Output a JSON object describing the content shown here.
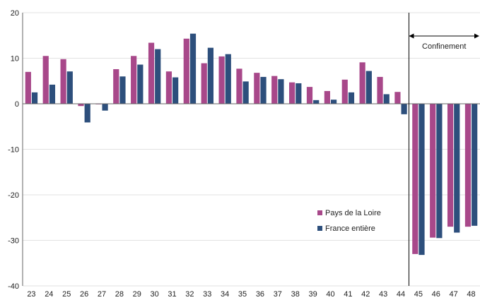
{
  "chart_data": {
    "type": "bar",
    "categories": [
      "23",
      "24",
      "25",
      "26",
      "27",
      "28",
      "29",
      "30",
      "31",
      "32",
      "33",
      "34",
      "35",
      "36",
      "37",
      "38",
      "39",
      "40",
      "41",
      "42",
      "43",
      "44",
      "45",
      "46",
      "47",
      "48"
    ],
    "series": [
      {
        "name": "Pays de la Loire",
        "color": "#a8488a",
        "values": [
          7.0,
          10.5,
          9.8,
          -0.5,
          -0.1,
          7.6,
          10.5,
          13.4,
          7.1,
          14.3,
          8.9,
          10.4,
          7.7,
          6.8,
          6.1,
          4.7,
          3.7,
          2.8,
          5.3,
          9.1,
          5.9,
          2.6,
          -33.0,
          -29.4,
          -27.0,
          -27.0
        ]
      },
      {
        "name": "France entière",
        "color": "#2d4f7c",
        "values": [
          2.5,
          4.2,
          7.1,
          -4.1,
          -1.5,
          6.0,
          8.6,
          12.0,
          5.8,
          15.4,
          12.3,
          10.9,
          4.9,
          5.9,
          5.4,
          4.5,
          0.8,
          0.9,
          2.5,
          7.2,
          2.1,
          -2.3,
          -33.2,
          -29.5,
          -28.3,
          -26.8
        ]
      }
    ],
    "ylim": [
      -40,
      20
    ],
    "yticks": [
      20,
      10,
      0,
      -10,
      -20,
      -30,
      -40
    ],
    "grid": true,
    "legend": "center-right",
    "annotation": {
      "label": "Confinement",
      "start_category": "45",
      "end_category": "48"
    }
  }
}
